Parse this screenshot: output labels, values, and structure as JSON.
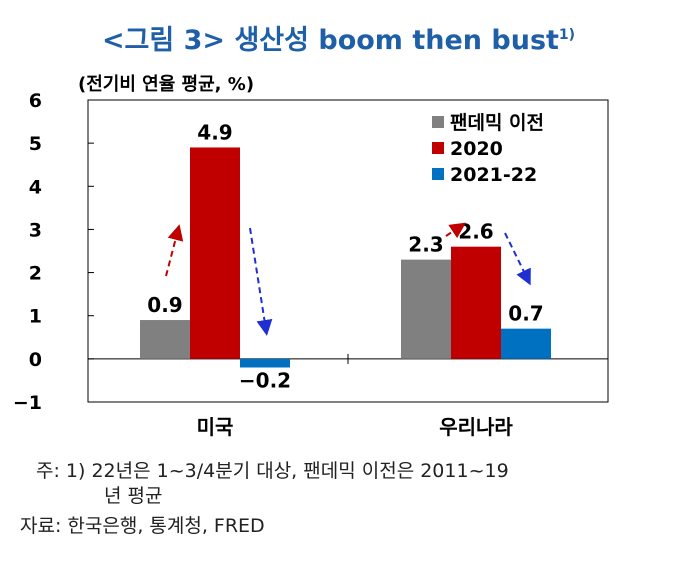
{
  "title": "<그림 3> 생산성 boom then bust",
  "title_footnote_marker": "1)",
  "chart_data": {
    "type": "bar",
    "unit_label": "(전기비 연율 평균, %)",
    "categories": [
      "미국",
      "우리나라"
    ],
    "series": [
      {
        "name": "팬데믹 이전",
        "values": [
          0.9,
          2.3
        ],
        "color": "#808080"
      },
      {
        "name": "2020",
        "values": [
          4.9,
          2.6
        ],
        "color": "#c00000"
      },
      {
        "name": "2021-22",
        "values": [
          -0.2,
          0.7
        ],
        "color": "#0070c0"
      }
    ],
    "data_labels": [
      [
        "0.9",
        "2.3"
      ],
      [
        "4.9",
        "2.6"
      ],
      [
        "-0.2",
        "0.7"
      ]
    ],
    "ylim": [
      -1,
      6
    ],
    "yticks": [
      "-1",
      "0",
      "1",
      "2",
      "3",
      "4",
      "5",
      "6"
    ],
    "legend_position": "top-right",
    "arrow_colors": {
      "up": "#c00000",
      "down": "#1f2fd0"
    }
  },
  "notes": {
    "note1_line1": "주: 1) 22년은 1~3/4분기 대상, 팬데믹 이전은 2011~19",
    "note1_line2": "년 평균",
    "source": "자료: 한국은행, 통계청, FRED"
  }
}
